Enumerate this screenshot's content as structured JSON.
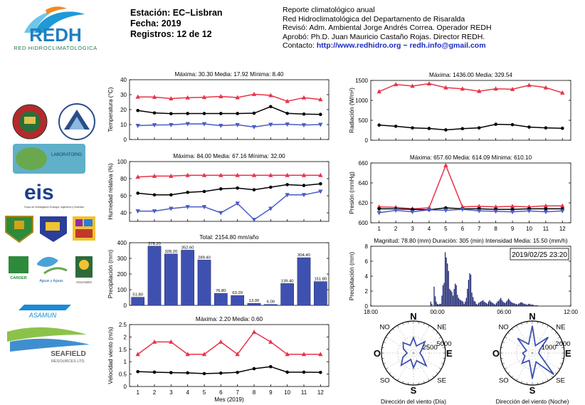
{
  "header": {
    "logo_text": "REDH",
    "logo_subtitle": "RED HIDROCLIMATOLÓGICA",
    "station": "Estación: EC−Lisbran",
    "date": "Fecha: 2019",
    "records": "Registros: 12 de 12",
    "report_lines": [
      "Reporte climatológico anual",
      "Red Hidroclimatológica del Departamento de Risaralda",
      "Revisó: Adm. Ambiental Jorge Andrés Correa. Operador REDH",
      "Aprobó: Ph.D. Juan Mauricio Castaño Rojas. Director REDH."
    ],
    "contact_label": "Contacto: ",
    "contact_url": "http://www.redhidro.org",
    "contact_sep": " − ",
    "contact_email": "redh.info@gmail.com"
  },
  "logos": {
    "laboratory": "LABORATORIO",
    "eis": "eis",
    "eis_sub": "Grupo de Investigación Ecología, Ingeniería y Sociedad",
    "carder": "CARDER",
    "aguas": "Aguas y Aguas",
    "acuaseo": "ACUASEO",
    "asamun": "ASAMUN",
    "seafield": "SEAFIELD",
    "seafield_sub": "RESOURCES LTD."
  },
  "colors": {
    "max": "#e8334a",
    "mean": "#000000",
    "min": "#4a5cbf",
    "bar": "#3f51b0"
  },
  "chart_data": [
    {
      "id": "temperatura",
      "type": "line",
      "title": "Máxima: 30.30 Media: 17.92 Mínima: 8.40",
      "ylabel": "Temperatura (°C)",
      "ylim": [
        0,
        40
      ],
      "yticks": [
        0,
        10,
        20,
        30,
        40
      ],
      "x": [
        1,
        2,
        3,
        4,
        5,
        6,
        7,
        8,
        9,
        10,
        11,
        12
      ],
      "series": [
        {
          "role": "max",
          "values": [
            28.5,
            28.4,
            27.4,
            28.0,
            28.3,
            28.8,
            28.1,
            30.3,
            29.5,
            25.6,
            28.0,
            26.8
          ]
        },
        {
          "role": "mean",
          "values": [
            19.4,
            17.8,
            17.3,
            17.4,
            17.4,
            17.4,
            17.4,
            17.6,
            22.0,
            17.5,
            17.0,
            16.8
          ]
        },
        {
          "role": "min",
          "values": [
            9.3,
            9.7,
            9.8,
            10.5,
            10.4,
            9.3,
            9.8,
            8.4,
            10.0,
            10.2,
            9.7,
            10.0
          ]
        }
      ]
    },
    {
      "id": "radiacion",
      "type": "line",
      "title": "Máxima: 1436.00 Media: 329.54",
      "ylabel": "Radiación (W/m²)",
      "ylim": [
        0,
        1500
      ],
      "yticks": [
        0,
        500,
        1000,
        1500
      ],
      "x": [
        1,
        2,
        3,
        4,
        5,
        6,
        7,
        8,
        9,
        10,
        11,
        12
      ],
      "series": [
        {
          "role": "max",
          "values": [
            1220,
            1400,
            1360,
            1420,
            1320,
            1290,
            1230,
            1290,
            1280,
            1380,
            1320,
            1190
          ]
        },
        {
          "role": "mean",
          "values": [
            380,
            350,
            310,
            295,
            260,
            290,
            310,
            400,
            390,
            330,
            310,
            300
          ]
        }
      ]
    },
    {
      "id": "humedad",
      "type": "line",
      "title": "Máxima: 84.00 Media: 67.16 Mínima: 32.00",
      "ylabel": "Humedad relativa (%)",
      "ylim": [
        30,
        100
      ],
      "yticks": [
        40,
        60,
        80,
        100
      ],
      "x": [
        1,
        2,
        3,
        4,
        5,
        6,
        7,
        8,
        9,
        10,
        11,
        12
      ],
      "series": [
        {
          "role": "max",
          "values": [
            82,
            83,
            83,
            84,
            84,
            84,
            84,
            84,
            84,
            84,
            84,
            84
          ]
        },
        {
          "role": "mean",
          "values": [
            63,
            61,
            61,
            64,
            65,
            68,
            69,
            67,
            70,
            73,
            72,
            74
          ]
        },
        {
          "role": "min",
          "values": [
            42,
            42,
            45,
            47,
            47,
            40,
            51,
            32,
            45,
            61,
            61,
            65
          ]
        }
      ]
    },
    {
      "id": "presion",
      "type": "line",
      "title": "Máxima: 657.60 Media: 614.09 Mínima: 610.10",
      "ylabel": "Presión (mmHg)",
      "ylim": [
        600,
        660
      ],
      "yticks": [
        600,
        620,
        640,
        660
      ],
      "xticks": [
        1,
        2,
        3,
        4,
        5,
        6,
        7,
        8,
        9,
        10,
        11,
        12
      ],
      "x": [
        1,
        2,
        3,
        4,
        5,
        6,
        7,
        8,
        9,
        10,
        11,
        12
      ],
      "series": [
        {
          "role": "max",
          "values": [
            616,
            615.5,
            614,
            615,
            657.6,
            616,
            616.5,
            616,
            616.5,
            616,
            617,
            617
          ]
        },
        {
          "role": "mean",
          "values": [
            614,
            614,
            613.5,
            613,
            615,
            614,
            614,
            613.5,
            613.5,
            614,
            614,
            614
          ]
        },
        {
          "role": "min",
          "values": [
            610.1,
            612.5,
            611,
            613,
            612.5,
            613.5,
            612,
            611.5,
            611,
            612,
            611,
            612
          ]
        }
      ]
    },
    {
      "id": "precipitacion",
      "type": "bar",
      "title": "Total: 2154.80 mm/año",
      "ylabel": "Precipitación (mm)",
      "ylim": [
        0,
        400
      ],
      "yticks": [
        0,
        100,
        200,
        300,
        400
      ],
      "categories": [
        1,
        2,
        3,
        4,
        5,
        6,
        7,
        8,
        9,
        10,
        11,
        12
      ],
      "values": [
        51.8,
        378.2,
        328.2,
        352.6,
        289.4,
        76.8,
        63.2,
        13.0,
        6.0,
        139.4,
        304.4,
        151.8
      ],
      "value_labels": [
        "51.80",
        "378.20",
        "328.20",
        "352.60",
        "289.40",
        "76.80",
        "63.20",
        "13.00",
        "6.00",
        "139.40",
        "304.40",
        "151.80"
      ]
    },
    {
      "id": "evento",
      "type": "bar",
      "title": "Magnitud: 78.80 (mm) Duración: 305 (min) Intensidad Media: 15.50 (mm/h)",
      "ylabel": "Precipitación (mm)",
      "ylim": [
        0,
        8
      ],
      "yticks": [
        0,
        2,
        4,
        6,
        8
      ],
      "xticks": [
        "18:00",
        "00:00",
        "06:00",
        "12:00"
      ],
      "timestamp": "2019/02/25 23:20",
      "x_hours_from_start": [
        5.4,
        5.5,
        5.7,
        5.8,
        5.9,
        6.0,
        6.1,
        6.2,
        6.3,
        6.4,
        6.5,
        6.6,
        6.7,
        6.8,
        6.9,
        7.0,
        7.1,
        7.2,
        7.3,
        7.4,
        7.5,
        7.6,
        7.7,
        7.8,
        7.9,
        8.0,
        8.1,
        8.2,
        8.3,
        8.4,
        8.5,
        8.6,
        8.7,
        8.8,
        8.9,
        9.0,
        9.1,
        9.2,
        9.3,
        9.4,
        9.5,
        9.6,
        9.7,
        9.8,
        9.9,
        10.0,
        10.1,
        10.2,
        10.3,
        10.4,
        10.5,
        10.6,
        10.7,
        10.8,
        10.9,
        11.0,
        11.1,
        11.2,
        11.3,
        11.4,
        11.5,
        11.6,
        11.7,
        11.8,
        11.9,
        12.0,
        12.1,
        12.2,
        12.3,
        12.4,
        12.5,
        12.6,
        12.7,
        12.8,
        12.9,
        13.0,
        13.1,
        13.2,
        13.3,
        13.4,
        13.5,
        13.6,
        13.7,
        13.8,
        13.9,
        14.0,
        14.1,
        14.2,
        14.3,
        14.4,
        14.5,
        14.6,
        14.7,
        14.8,
        14.9,
        15.0
      ],
      "values": [
        0.6,
        0.3,
        2.6,
        1.3,
        0.6,
        0.3,
        0.2,
        0.3,
        0.3,
        1.4,
        2.8,
        3.1,
        7.2,
        6.5,
        5.7,
        4.7,
        2.3,
        2.1,
        1.9,
        1.4,
        2.3,
        3.0,
        2.8,
        1.5,
        1.1,
        0.9,
        0.8,
        0.7,
        0.6,
        0.3,
        0.6,
        1.1,
        2.3,
        3.5,
        4.4,
        4.2,
        1.8,
        1.2,
        0.7,
        0.6,
        0.3,
        0.2,
        0.4,
        0.5,
        0.6,
        0.7,
        0.8,
        0.6,
        0.5,
        0.4,
        0.3,
        0.6,
        0.8,
        0.6,
        0.5,
        0.4,
        0.3,
        0.2,
        0.4,
        0.6,
        0.7,
        0.9,
        1.1,
        0.8,
        0.6,
        0.5,
        0.4,
        0.6,
        0.8,
        1.0,
        0.8,
        0.6,
        0.5,
        0.4,
        0.4,
        0.3,
        0.3,
        0.2,
        0.3,
        0.4,
        0.5,
        0.5,
        0.4,
        0.3,
        0.3,
        0.2,
        0.2,
        0.3,
        0.3,
        0.2,
        0.2,
        0.2,
        0.1,
        0.1,
        0.1,
        0.1
      ]
    },
    {
      "id": "viento",
      "type": "line",
      "title": "Máxima: 2.20 Media: 0.60",
      "ylabel": "Velocidad viento (m/s)",
      "xlabel": "Mes (2019)",
      "ylim": [
        0,
        2.5
      ],
      "yticks": [
        0,
        0.5,
        1,
        1.5,
        2,
        2.5
      ],
      "ytick_labels": [
        "0",
        "0.5",
        "1",
        "1.5",
        "2",
        "2.5"
      ],
      "xticks": [
        1,
        2,
        3,
        4,
        5,
        6,
        7,
        8,
        9,
        10,
        11,
        12
      ],
      "x": [
        1,
        2,
        3,
        4,
        5,
        6,
        7,
        8,
        9,
        10,
        11,
        12
      ],
      "series": [
        {
          "role": "max",
          "values": [
            1.3,
            1.8,
            1.8,
            1.3,
            1.3,
            1.8,
            1.3,
            2.2,
            1.8,
            1.3,
            1.3,
            1.3
          ]
        },
        {
          "role": "mean",
          "values": [
            0.6,
            0.58,
            0.56,
            0.55,
            0.52,
            0.54,
            0.57,
            0.72,
            0.8,
            0.58,
            0.58,
            0.57
          ]
        }
      ]
    },
    {
      "id": "rosa_dia",
      "type": "polar",
      "xlabel": "Dirección del viento (Día)",
      "ring_labels": [
        "2500",
        "5000"
      ],
      "rmax": 5000,
      "cardinals": {
        "N": "N",
        "S": "S",
        "E": "E",
        "O": "O",
        "NE": "NE",
        "NO": "NO",
        "SE": "SE",
        "SO": "SO"
      },
      "directions_deg": [
        0,
        22.5,
        45,
        67.5,
        90,
        112.5,
        135,
        157.5,
        180,
        202.5,
        225,
        247.5,
        270,
        292.5,
        315,
        337.5
      ],
      "values": [
        2400,
        1200,
        2500,
        1400,
        1000,
        1500,
        2800,
        1300,
        2300,
        1100,
        2700,
        1800,
        1000,
        1700,
        2300,
        1300
      ]
    },
    {
      "id": "rosa_noche",
      "type": "polar",
      "xlabel": "Dirección del viento (Noche)",
      "ring_labels": [
        "1000",
        "2000"
      ],
      "rmax": 2000,
      "cardinals": {
        "N": "N",
        "S": "S",
        "E": "E",
        "O": "O",
        "NE": "NE",
        "NO": "NO",
        "SE": "SE",
        "SO": "SO"
      },
      "directions_deg": [
        0,
        22.5,
        45,
        67.5,
        90,
        112.5,
        135,
        157.5,
        180,
        202.5,
        225,
        247.5,
        270,
        292.5,
        315,
        337.5
      ],
      "values": [
        1700,
        500,
        1400,
        500,
        400,
        600,
        1900,
        600,
        1600,
        500,
        900,
        500,
        600,
        400,
        1300,
        600
      ]
    }
  ]
}
